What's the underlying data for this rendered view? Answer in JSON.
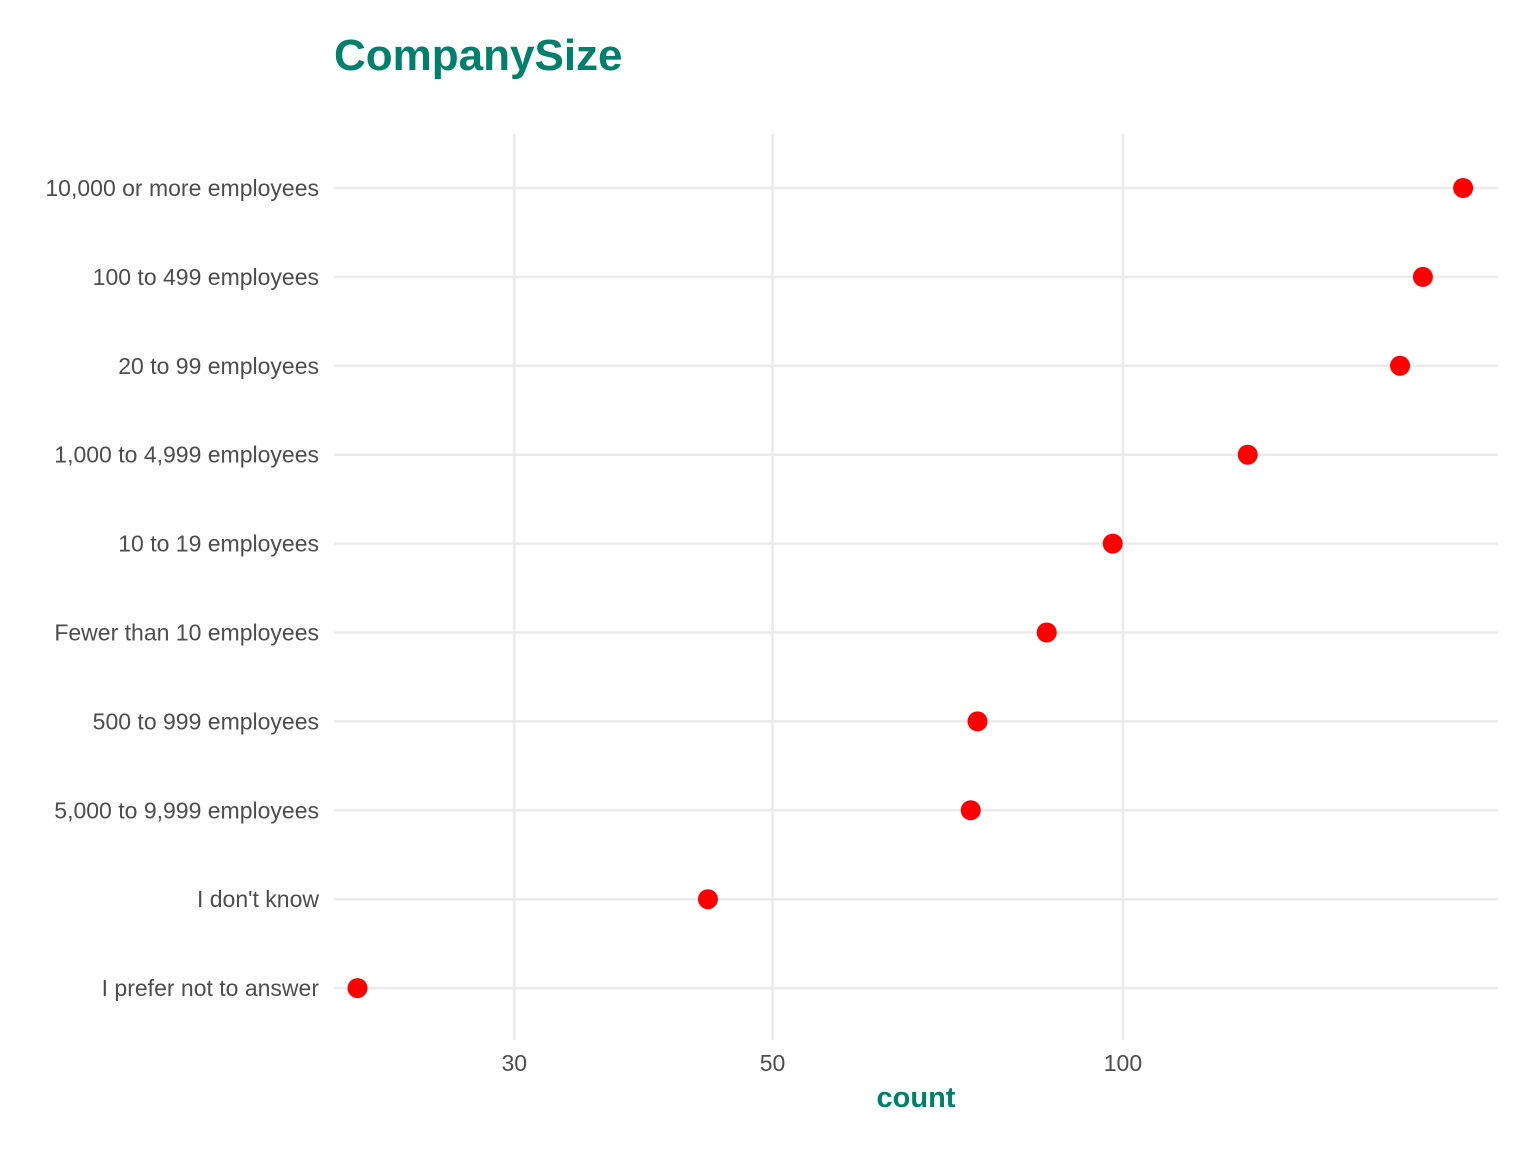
{
  "chart_data": {
    "type": "scatter",
    "title": "CompanySize",
    "xlabel": "count",
    "ylabel": "",
    "x_scale": "log10",
    "xlim": [
      21,
      210
    ],
    "x_ticks": [
      30,
      50,
      100
    ],
    "x_tick_labels": [
      "30",
      "50",
      "100"
    ],
    "grid": true,
    "legend": "none",
    "categories": [
      "10,000 or more employees",
      "100 to 499 employees",
      "20 to 99 employees",
      "1,000 to 4,999 employees",
      "10 to 19 employees",
      "Fewer than 10 employees",
      "500 to 999 employees",
      "5,000 to 9,999 employees",
      "I don't know",
      "I prefer not to answer"
    ],
    "values": [
      196,
      181,
      173,
      128,
      98,
      86,
      75,
      74,
      44,
      22
    ]
  },
  "colors": {
    "accent": "#00806a",
    "point": "#ff0000",
    "grid": "#ebebeb",
    "text": "#4d4d4d"
  }
}
